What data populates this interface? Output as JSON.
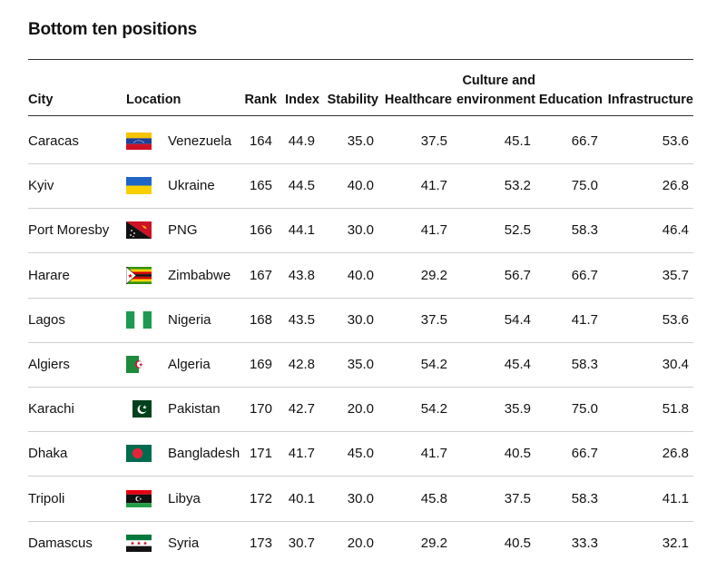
{
  "title": "Bottom ten positions",
  "columns": {
    "city": "City",
    "location": "Location",
    "rank": "Rank",
    "index": "Index",
    "stability": "Stability",
    "healthcare": "Healthcare",
    "culture_line1": "Culture and",
    "culture_line2": "environment",
    "education": "Education",
    "infrastructure": "Infrastructure"
  },
  "chart_data": {
    "type": "table",
    "title": "Bottom ten positions",
    "columns": [
      "City",
      "Location",
      "Rank",
      "Index",
      "Stability",
      "Healthcare",
      "Culture and environment",
      "Education",
      "Infrastructure"
    ],
    "rows": [
      {
        "city": "Caracas",
        "location": "Venezuela",
        "flag": "venezuela-flag",
        "rank": "164",
        "index": "44.9",
        "stability": "35.0",
        "healthcare": "37.5",
        "culture": "45.1",
        "education": "66.7",
        "infrastructure": "53.6"
      },
      {
        "city": "Kyiv",
        "location": "Ukraine",
        "flag": "ukraine-flag",
        "rank": "165",
        "index": "44.5",
        "stability": "40.0",
        "healthcare": "41.7",
        "culture": "53.2",
        "education": "75.0",
        "infrastructure": "26.8"
      },
      {
        "city": "Port Moresby",
        "location": "PNG",
        "flag": "png-flag",
        "rank": "166",
        "index": "44.1",
        "stability": "30.0",
        "healthcare": "41.7",
        "culture": "52.5",
        "education": "58.3",
        "infrastructure": "46.4"
      },
      {
        "city": "Harare",
        "location": "Zimbabwe",
        "flag": "zimbabwe-flag",
        "rank": "167",
        "index": "43.8",
        "stability": "40.0",
        "healthcare": "29.2",
        "culture": "56.7",
        "education": "66.7",
        "infrastructure": "35.7"
      },
      {
        "city": "Lagos",
        "location": "Nigeria",
        "flag": "nigeria-flag",
        "rank": "168",
        "index": "43.5",
        "stability": "30.0",
        "healthcare": "37.5",
        "culture": "54.4",
        "education": "41.7",
        "infrastructure": "53.6"
      },
      {
        "city": "Algiers",
        "location": "Algeria",
        "flag": "algeria-flag",
        "rank": "169",
        "index": "42.8",
        "stability": "35.0",
        "healthcare": "54.2",
        "culture": "45.4",
        "education": "58.3",
        "infrastructure": "30.4"
      },
      {
        "city": "Karachi",
        "location": "Pakistan",
        "flag": "pakistan-flag",
        "rank": "170",
        "index": "42.7",
        "stability": "20.0",
        "healthcare": "54.2",
        "culture": "35.9",
        "education": "75.0",
        "infrastructure": "51.8"
      },
      {
        "city": "Dhaka",
        "location": "Bangladesh",
        "flag": "bangladesh-flag",
        "rank": "171",
        "index": "41.7",
        "stability": "45.0",
        "healthcare": "41.7",
        "culture": "40.5",
        "education": "66.7",
        "infrastructure": "26.8"
      },
      {
        "city": "Tripoli",
        "location": "Libya",
        "flag": "libya-flag",
        "rank": "172",
        "index": "40.1",
        "stability": "30.0",
        "healthcare": "45.8",
        "culture": "37.5",
        "education": "58.3",
        "infrastructure": "41.1"
      },
      {
        "city": "Damascus",
        "location": "Syria",
        "flag": "syria-flag",
        "rank": "173",
        "index": "30.7",
        "stability": "20.0",
        "healthcare": "29.2",
        "culture": "40.5",
        "education": "33.3",
        "infrastructure": "32.1"
      }
    ]
  }
}
